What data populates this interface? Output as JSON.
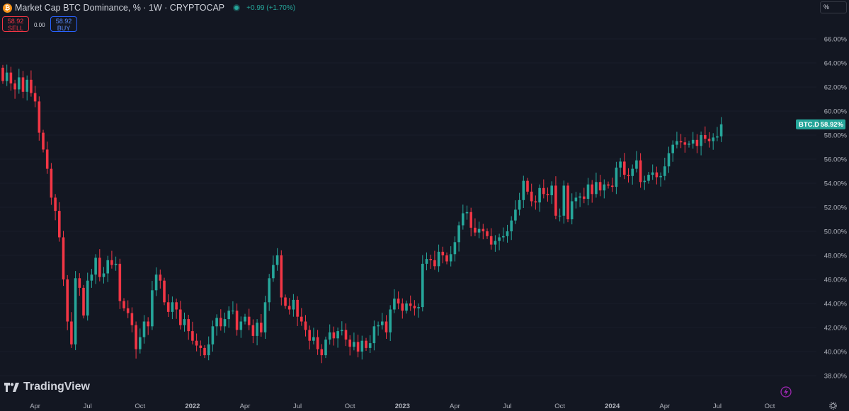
{
  "header": {
    "coin_glyph": "₿",
    "title": "Market Cap BTC Dominance, % · 1W · CRYPTOCAP",
    "change": "+0.99 (+1.70%)"
  },
  "trade": {
    "sell_price": "58.92",
    "sell_label": "SELL",
    "spread": "0.00",
    "buy_price": "58.92",
    "buy_label": "BUY"
  },
  "scale_button": "%",
  "brand": "TradingView",
  "colors": {
    "background": "#131722",
    "up": "#26a69a",
    "down": "#f23645",
    "text": "#b2b5be",
    "axis_text": "#b2b5be"
  },
  "chart_data": {
    "type": "candlestick",
    "symbol": "BTC.D",
    "last_value_label": "58.92%",
    "ylim": [
      37.0,
      67.0
    ],
    "y_ticks": [
      "38.00%",
      "40.00%",
      "42.00%",
      "44.00%",
      "46.00%",
      "48.00%",
      "50.00%",
      "52.00%",
      "54.00%",
      "56.00%",
      "58.00%",
      "60.00%",
      "62.00%",
      "64.00%",
      "66.00%"
    ],
    "y_tick_values": [
      38,
      40,
      42,
      44,
      46,
      48,
      50,
      52,
      54,
      56,
      58,
      60,
      62,
      64,
      66
    ],
    "x_ticks": [
      {
        "label": "Apr",
        "week": 8
      },
      {
        "label": "Jul",
        "week": 21
      },
      {
        "label": "Oct",
        "week": 34
      },
      {
        "label": "2022",
        "week": 47
      },
      {
        "label": "Apr",
        "week": 60
      },
      {
        "label": "Jul",
        "week": 73
      },
      {
        "label": "Oct",
        "week": 86
      },
      {
        "label": "2023",
        "week": 99
      },
      {
        "label": "Apr",
        "week": 112
      },
      {
        "label": "Jul",
        "week": 125
      },
      {
        "label": "Oct",
        "week": 138
      },
      {
        "label": "2024",
        "week": 151
      },
      {
        "label": "Apr",
        "week": 164
      },
      {
        "label": "Jul",
        "week": 177
      },
      {
        "label": "Oct",
        "week": 190
      }
    ],
    "closes": [
      62.5,
      63.2,
      62.3,
      61.8,
      62.8,
      61.6,
      62.6,
      61.5,
      60.8,
      58.2,
      56.8,
      55.2,
      52.8,
      51.7,
      49.5,
      46.0,
      42.5,
      40.6,
      46.1,
      45.3,
      43.0,
      45.9,
      46.4,
      47.8,
      46.2,
      46.5,
      47.6,
      47.2,
      47.3,
      44.2,
      43.6,
      43.2,
      42.2,
      40.2,
      41.2,
      42.5,
      42.1,
      45.1,
      46.4,
      45.9,
      44.1,
      43.3,
      44.1,
      43.5,
      42.2,
      42.7,
      41.7,
      40.9,
      40.5,
      40.3,
      39.7,
      40.6,
      42.1,
      42.8,
      42.1,
      42.7,
      43.4,
      43.4,
      41.8,
      42.5,
      42.9,
      42.2,
      41.3,
      42.4,
      41.6,
      44.1,
      46.1,
      47.2,
      48.0,
      44.5,
      43.8,
      43.5,
      44.3,
      42.9,
      42.5,
      41.8,
      40.9,
      41.2,
      40.2,
      39.7,
      41.0,
      41.6,
      41.1,
      41.7,
      41.8,
      41.0,
      40.4,
      40.8,
      40.0,
      40.9,
      40.3,
      40.7,
      42.1,
      42.2,
      42.5,
      41.6,
      43.5,
      44.4,
      44.0,
      43.4,
      44.0,
      43.8,
      43.6,
      43.7,
      47.3,
      47.7,
      47.6,
      47.1,
      48.3,
      48.0,
      47.5,
      48.1,
      49.1,
      50.5,
      51.5,
      51.6,
      50.3,
      49.9,
      50.2,
      50.0,
      49.6,
      48.9,
      49.2,
      49.5,
      49.6,
      50.0,
      50.9,
      51.8,
      52.6,
      54.2,
      53.3,
      52.5,
      52.4,
      53.6,
      53.1,
      53.0,
      53.8,
      51.3,
      51.3,
      53.8,
      51.0,
      52.5,
      52.8,
      52.9,
      52.7,
      53.9,
      53.1,
      54.1,
      53.4,
      53.9,
      53.8,
      53.7,
      55.3,
      55.8,
      54.7,
      54.6,
      55.2,
      55.9,
      54.1,
      54.2,
      54.7,
      54.9,
      54.5,
      54.6,
      55.4,
      56.5,
      57.2,
      57.5,
      57.4,
      57.2,
      57.3,
      57.6,
      57.1,
      58.0,
      57.7,
      57.5,
      57.8,
      57.9,
      58.9
    ],
    "opens_first": 63.6,
    "wick_pad": 0.6
  }
}
